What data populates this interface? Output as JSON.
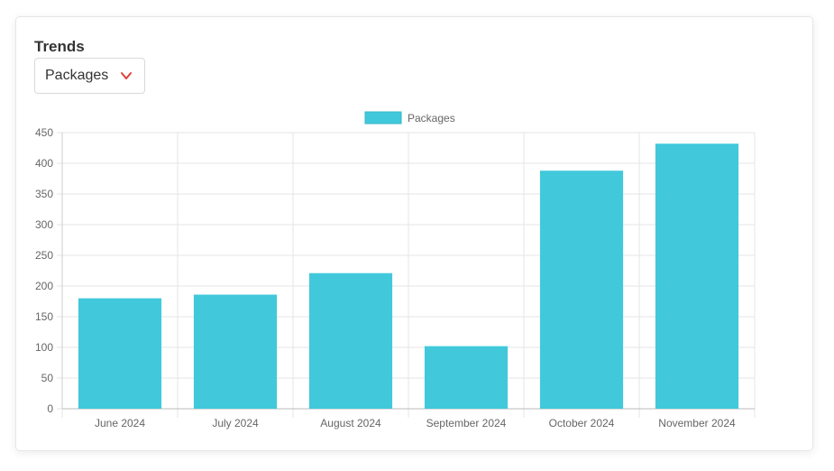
{
  "header": {
    "title": "Trends"
  },
  "selector": {
    "selected": "Packages",
    "icon": "chevron-down-icon"
  },
  "colors": {
    "bar": "#41c9db",
    "chevron": "#e0413a",
    "grid": "#e5e5e5",
    "tick_text": "#666666"
  },
  "chart_data": {
    "type": "bar",
    "categories": [
      "June 2024",
      "July 2024",
      "August 2024",
      "September 2024",
      "October 2024",
      "November 2024"
    ],
    "series": [
      {
        "name": "Packages",
        "values": [
          180,
          186,
          221,
          102,
          388,
          432
        ]
      }
    ],
    "ylim": [
      0,
      450
    ],
    "yticks": [
      0,
      50,
      100,
      150,
      200,
      250,
      300,
      350,
      400,
      450
    ],
    "legend": "top-center",
    "grid": true
  }
}
